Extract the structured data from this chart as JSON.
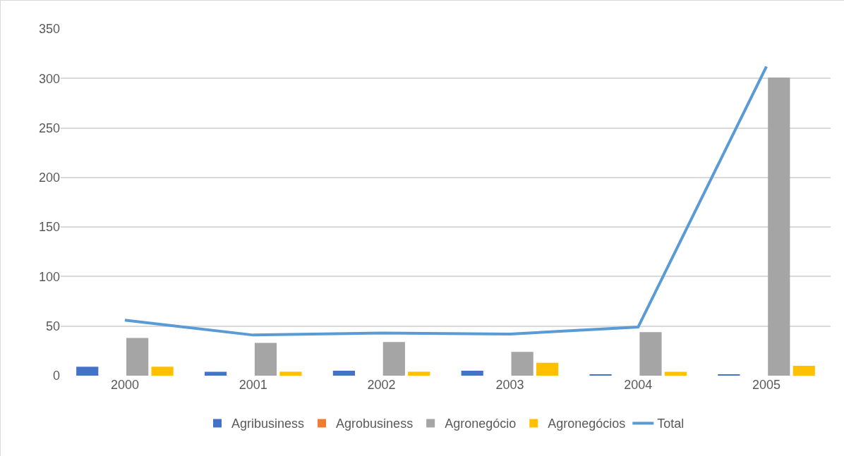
{
  "chart_data": {
    "type": "bar",
    "categories": [
      "2000",
      "2001",
      "2002",
      "2003",
      "2004",
      "2005"
    ],
    "series": [
      {
        "name": "Agribusiness",
        "color": "#4472c4",
        "values": [
          9,
          4,
          5,
          5,
          1,
          1
        ]
      },
      {
        "name": "Agrobusiness",
        "color": "#ed7d31",
        "values": [
          0,
          0,
          0,
          0,
          0,
          0
        ]
      },
      {
        "name": "Agronegócio",
        "color": "#a5a5a5",
        "values": [
          38,
          33,
          34,
          24,
          44,
          301
        ]
      },
      {
        "name": "Agronegócios",
        "color": "#ffc000",
        "values": [
          9,
          4,
          4,
          13,
          4,
          10
        ]
      },
      {
        "name": "Total",
        "type": "line",
        "color": "#5b9bd5",
        "values": [
          56,
          41,
          43,
          42,
          49,
          312
        ]
      }
    ],
    "ylim": [
      0,
      350
    ],
    "yticks": [
      0,
      50,
      100,
      150,
      200,
      250,
      300,
      350
    ],
    "grid": "y",
    "legend": "bottom",
    "marker": "none",
    "line_style": "solid"
  }
}
